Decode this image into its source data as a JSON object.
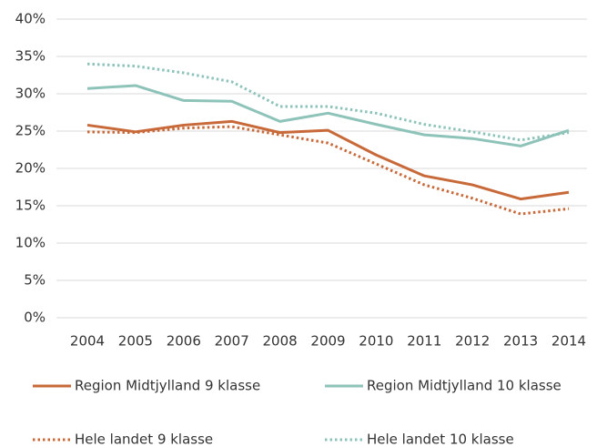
{
  "chart_data": {
    "type": "line",
    "categories": [
      "2004",
      "2005",
      "2006",
      "2007",
      "2008",
      "2009",
      "2010",
      "2011",
      "2012",
      "2013",
      "2014"
    ],
    "series": [
      {
        "name": "Region Midtjylland 9 klasse",
        "color": "#c8693a",
        "line_style": "solid",
        "values": [
          25.8,
          24.9,
          25.8,
          26.3,
          24.8,
          25.1,
          21.8,
          19.0,
          17.8,
          15.9,
          16.8
        ]
      },
      {
        "name": "Region Midtjylland 10 klasse",
        "color": "#8ec3ba",
        "line_style": "solid",
        "values": [
          30.7,
          31.1,
          29.1,
          29.0,
          26.3,
          27.4,
          25.9,
          24.5,
          24.0,
          23.0,
          25.1
        ]
      },
      {
        "name": "Hele landet 9 klasse",
        "color": "#c8693a",
        "line_style": "dotted",
        "values": [
          24.9,
          24.8,
          25.4,
          25.6,
          24.5,
          23.4,
          20.6,
          17.8,
          16.0,
          13.9,
          14.6
        ]
      },
      {
        "name": "Hele landet 10 klasse",
        "color": "#8ec3ba",
        "line_style": "dotted",
        "values": [
          34.0,
          33.7,
          32.8,
          31.6,
          28.3,
          28.3,
          27.4,
          25.9,
          24.9,
          23.8,
          24.8
        ]
      }
    ],
    "ylim": [
      0,
      40
    ],
    "yticks": [
      {
        "value": 0,
        "label": "0%"
      },
      {
        "value": 5,
        "label": "5%"
      },
      {
        "value": 10,
        "label": "10%"
      },
      {
        "value": 15,
        "label": "15%"
      },
      {
        "value": 20,
        "label": "20%"
      },
      {
        "value": 25,
        "label": "25%"
      },
      {
        "value": 30,
        "label": "30%"
      },
      {
        "value": 35,
        "label": "35%"
      },
      {
        "value": 40,
        "label": "40%"
      }
    ],
    "grid": true,
    "legend": "bottom"
  }
}
